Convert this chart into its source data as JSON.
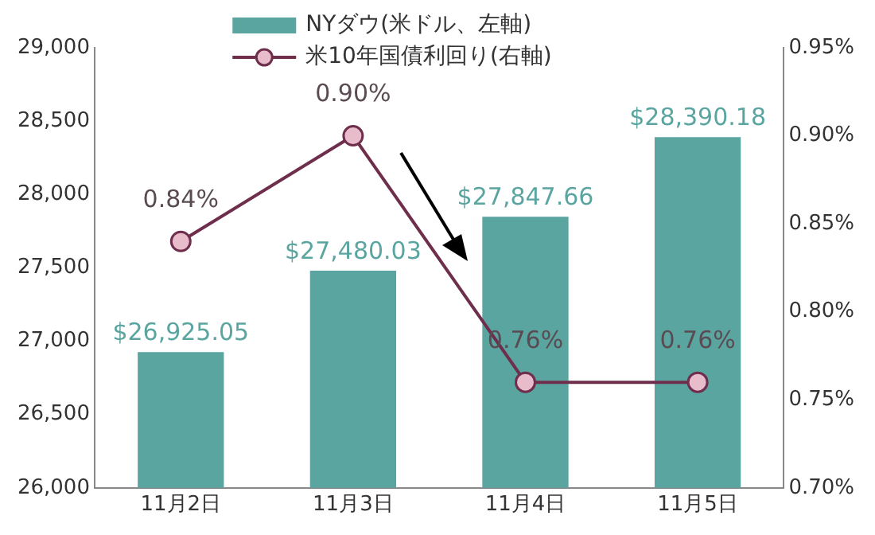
{
  "chart_data": {
    "type": "bar",
    "categories": [
      "11月2日",
      "11月3日",
      "11月4日",
      "11月5日"
    ],
    "series": [
      {
        "name": "NYダウ(米ドル、左軸)",
        "color": "#5ba5a1",
        "values": [
          26925.05,
          27480.03,
          27847.66,
          28390.18
        ],
        "value_labels": [
          "$26,925.05",
          "$27,480.03",
          "$27,847.66",
          "$28,390.18"
        ]
      },
      {
        "name": "米10年国債利回り(右軸)",
        "type": "line",
        "axis": "y2",
        "color": "#6e2e4c",
        "values": [
          0.84,
          0.9,
          0.76,
          0.76
        ],
        "value_labels": [
          "0.84%",
          "0.90%",
          "0.76%",
          "0.76%"
        ],
        "marker": "circle"
      }
    ],
    "ylim": [
      26000,
      29000
    ],
    "yticks": [
      {
        "value": 26000,
        "label": "26,000"
      },
      {
        "value": 26500,
        "label": "26,500"
      },
      {
        "value": 27000,
        "label": "27,000"
      },
      {
        "value": 27500,
        "label": "27,500"
      },
      {
        "value": 28000,
        "label": "28,000"
      },
      {
        "value": 28500,
        "label": "28,500"
      },
      {
        "value": 29000,
        "label": "29,000"
      }
    ],
    "y2lim": [
      0.7,
      0.95
    ],
    "y2ticks": [
      {
        "value": 0.7,
        "label": "0.70%"
      },
      {
        "value": 0.75,
        "label": "0.75%"
      },
      {
        "value": 0.8,
        "label": "0.80%"
      },
      {
        "value": 0.85,
        "label": "0.85%"
      },
      {
        "value": 0.9,
        "label": "0.90%"
      },
      {
        "value": 0.95,
        "label": "0.95%"
      }
    ],
    "grid": false,
    "legend": "top"
  }
}
